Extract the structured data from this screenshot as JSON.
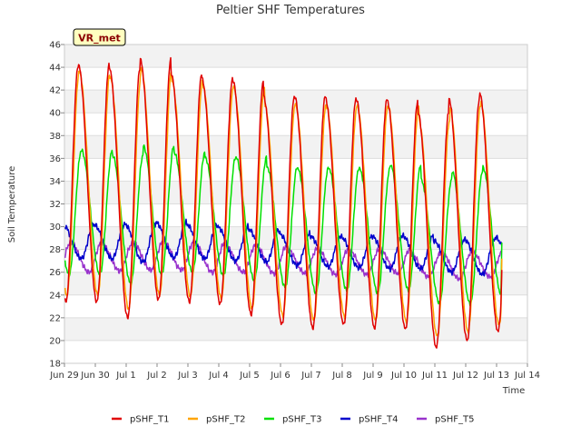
{
  "chart_data": {
    "type": "line",
    "title": "Peltier SHF Temperatures",
    "xlabel": "Time",
    "ylabel": "Soil Temperature",
    "badge": "VR_met",
    "x_ticks": [
      "Jun 29",
      "Jun 30",
      "Jul 1",
      "Jul 2",
      "Jul 3",
      "Jul 4",
      "Jul 5",
      "Jul 6",
      "Jul 7",
      "Jul 8",
      "Jul 9",
      "Jul 10",
      "Jul 11",
      "Jul 12",
      "Jul 13",
      "Jul 14"
    ],
    "xlim": [
      0,
      15
    ],
    "ylim": [
      18,
      46
    ],
    "y_ticks": [
      18,
      20,
      22,
      24,
      26,
      28,
      30,
      32,
      34,
      36,
      38,
      40,
      42,
      44,
      46
    ],
    "grid": true,
    "legend_position": "bottom",
    "series": [
      {
        "name": "pSHF_T1",
        "color": "#e00000",
        "peak_day_offset": 0.45,
        "daily_max": [
          44.2,
          44.0,
          44.7,
          43.5,
          43.0,
          42.9,
          41.4,
          41.5,
          41.3,
          41.2,
          41.1,
          40.0,
          41.3,
          41.7
        ],
        "daily_min": [
          23.4,
          22.0,
          23.6,
          23.4,
          23.2,
          22.3,
          21.4,
          21.1,
          21.4,
          21.1,
          21.0,
          19.4,
          20.0,
          20.8
        ],
        "end_value": 26.2
      },
      {
        "name": "pSHF_T2",
        "color": "#ffa500",
        "peak_day_offset": 0.48,
        "daily_max": [
          43.6,
          43.1,
          43.9,
          42.8,
          42.4,
          42.2,
          40.8,
          40.7,
          40.6,
          40.6,
          40.6,
          39.3,
          40.6,
          41.0
        ],
        "daily_min": [
          24.0,
          22.8,
          24.0,
          23.9,
          23.7,
          22.8,
          22.2,
          21.8,
          22.1,
          21.8,
          21.7,
          20.4,
          20.8,
          21.4
        ],
        "end_value": 27.2
      },
      {
        "name": "pSHF_T3",
        "color": "#00e000",
        "peak_day_offset": 0.55,
        "daily_max": [
          36.7,
          36.3,
          37.1,
          36.5,
          36.1,
          36.1,
          35.3,
          35.1,
          35.2,
          35.1,
          35.5,
          34.1,
          34.9,
          35.2
        ],
        "daily_min": [
          25.8,
          25.0,
          25.8,
          26.0,
          25.7,
          25.3,
          24.7,
          24.2,
          24.4,
          24.2,
          24.4,
          23.3,
          23.2,
          24.1
        ],
        "end_value": 28.6
      },
      {
        "name": "pSHF_T4",
        "color": "#0000cc",
        "peak_day_offset": 0.95,
        "daily_max": [
          30.2,
          30.2,
          30.4,
          30.2,
          30.0,
          29.8,
          29.4,
          29.2,
          29.1,
          29.2,
          29.2,
          28.8,
          28.9,
          29.1
        ],
        "daily_min": [
          27.2,
          26.9,
          27.3,
          27.2,
          27.0,
          26.9,
          26.6,
          26.5,
          26.4,
          26.3,
          26.3,
          26.0,
          25.8,
          26.0
        ],
        "end_value": 28.3
      },
      {
        "name": "pSHF_T5",
        "color": "#9933cc",
        "peak_day_offset": 0.2,
        "daily_max": [
          28.6,
          28.5,
          28.7,
          28.7,
          28.6,
          28.4,
          28.3,
          28.1,
          28.0,
          28.0,
          28.0,
          27.7,
          27.8,
          27.8
        ],
        "daily_min": [
          26.0,
          26.1,
          26.2,
          26.2,
          26.0,
          26.0,
          25.9,
          25.9,
          25.8,
          25.8,
          25.9,
          25.6,
          25.4,
          25.6
        ],
        "end_value": 27.9
      }
    ]
  }
}
